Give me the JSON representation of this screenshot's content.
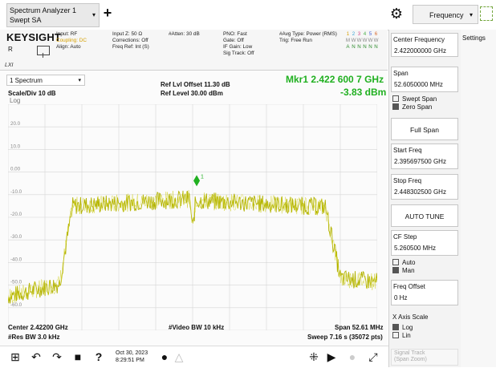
{
  "header": {
    "tab_line1": "Spectrum Analyzer 1",
    "tab_line2": "Swept SA",
    "add_icon": "plus-icon",
    "settings_icon": "gear-icon",
    "menu_value": "Frequency"
  },
  "info": {
    "brand": "KEYSIGHT",
    "input_rf": "Input: RF",
    "coupling": "Coupling: DC",
    "align": "Align: Auto",
    "inputz": "Input Z: 50 Ω",
    "corrections": "Corrections: Off",
    "freqref": "Freq Ref: Int (S)",
    "atten": "#Atten: 30 dB",
    "pno": "PNO: Fast",
    "gate": "Gate: Off",
    "ifgain": "IF Gain: Low",
    "sigtrack": "Sig Track: Off",
    "avgtype": "#Avg Type: Power (RMS)",
    "trig": "Trig: Free Run",
    "r_label": "R",
    "lxi": "LXI",
    "trace_nums": [
      "1",
      "2",
      "3",
      "4",
      "5",
      "6"
    ],
    "trace_row2": [
      "M",
      "W",
      "W",
      "W",
      "W",
      "W"
    ],
    "trace_row3": [
      "A",
      "N",
      "N",
      "N",
      "N",
      "N"
    ]
  },
  "display": {
    "selector": "1 Spectrum",
    "scale": "Scale/Div 10 dB",
    "ylog": "Log",
    "ref_offset": "Ref Lvl Offset 11.30 dB",
    "ref_level": "Ref Level 30.00 dBm",
    "marker_freq": "Mkr1  2.422 600 7 GHz",
    "marker_amp": "-3.83 dBm",
    "marker_label": "1",
    "ylabels": [
      "20.0",
      "10.0",
      "0.00",
      "-10.0",
      "-20.0",
      "-30.0",
      "-40.0",
      "-50.0",
      "-60.0"
    ],
    "center": "Center 2.42200 GHz",
    "resbw": "#Res BW 3.0 kHz",
    "vbw": "#Video BW 10 kHz",
    "span": "Span 52.61 MHz",
    "sweep": "Sweep 7.16 s (35072 pts)"
  },
  "right": {
    "center_label": "Center Frequency",
    "center_value": "2.422000000 GHz",
    "span_label": "Span",
    "span_value": "52.6050000 MHz",
    "swept_span": "Swept Span",
    "zero_span": "Zero Span",
    "full_span": "Full Span",
    "start_label": "Start Freq",
    "start_value": "2.395697500 GHz",
    "stop_label": "Stop Freq",
    "stop_value": "2.448302500 GHz",
    "auto_tune": "AUTO TUNE",
    "cfstep_label": "CF Step",
    "cfstep_value": "5.260500 MHz",
    "auto": "Auto",
    "man": "Man",
    "freqoffset_label": "Freq Offset",
    "freqoffset_value": "0 Hz",
    "xaxis_label": "X Axis Scale",
    "log": "Log",
    "lin": "Lin",
    "signal_track": "Signal Track",
    "signal_track2": "(Span Zoom)",
    "settings_tab": "Settings"
  },
  "taskbar": {
    "date": "Oct 30, 2023",
    "time": "8:29:51 PM",
    "icons": [
      "windows-icon",
      "undo-icon",
      "redo-icon",
      "folder-icon",
      "help-icon",
      "chat-icon",
      "warning-icon",
      "grid-icon",
      "pointer-icon",
      "lock-icon",
      "fullscreen-icon"
    ]
  }
}
